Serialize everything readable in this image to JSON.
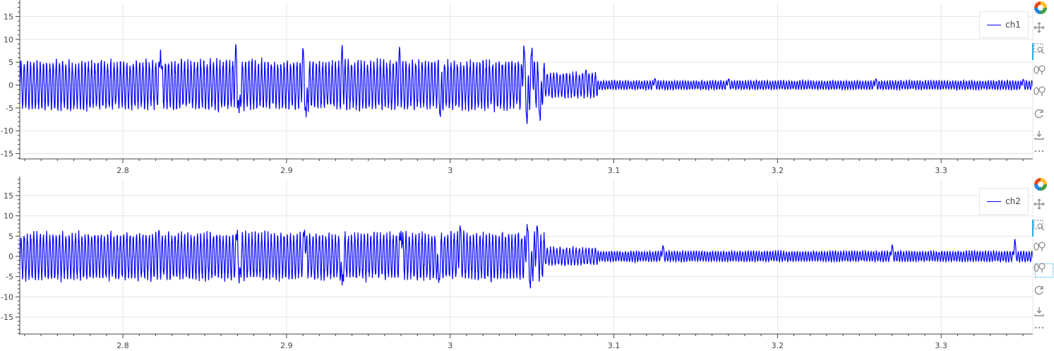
{
  "colors": {
    "line": "#0000ff",
    "grid": "#e5e5e5",
    "axis": "#444444",
    "active_tool": "#26aae1"
  },
  "toolbar": {
    "tools": [
      {
        "name": "bokeh-logo-icon",
        "active": false
      },
      {
        "name": "pan-icon",
        "active": false
      },
      {
        "name": "box-zoom-icon",
        "active": true
      },
      {
        "name": "wheel-zoom-x-icon",
        "active": false
      },
      {
        "name": "wheel-zoom-y-icon",
        "active": false
      },
      {
        "name": "reset-icon",
        "active": false
      },
      {
        "name": "save-icon",
        "active": false
      },
      {
        "name": "more-icon",
        "active": false
      }
    ]
  },
  "chart_data": [
    {
      "type": "line",
      "title": "",
      "xlabel": "",
      "ylabel": "",
      "xlim": [
        2.737,
        3.356
      ],
      "ylim": [
        -16,
        18
      ],
      "x_ticks": [
        "2.8",
        "2.9",
        "3",
        "3.1",
        "3.2",
        "3.3"
      ],
      "x_tick_values": [
        2.8,
        2.9,
        3.0,
        3.1,
        3.2,
        3.3
      ],
      "y_ticks": [
        "15",
        "10",
        "5",
        "0",
        "-5",
        "-10",
        "-15"
      ],
      "y_tick_values": [
        15,
        10,
        5,
        0,
        -5,
        -10,
        -15
      ],
      "grid": true,
      "legend_position": "top-right",
      "series": [
        {
          "name": "ch1",
          "segments": [
            {
              "x_start": 2.737,
              "x_end": 3.058,
              "freq_hz": 510,
              "amplitude": 4.8
            },
            {
              "x_start": 3.058,
              "x_end": 3.09,
              "freq_hz": 510,
              "amplitude": 2.5
            },
            {
              "x_start": 3.09,
              "x_end": 3.356,
              "freq_hz": 600,
              "amplitude": 0.9
            }
          ],
          "peaks": [
            {
              "x": 2.823,
              "y": 8.5
            },
            {
              "x": 2.869,
              "y": 9.0
            },
            {
              "x": 2.871,
              "y": -6.6
            },
            {
              "x": 2.91,
              "y": 8.3
            },
            {
              "x": 2.912,
              "y": -7.2
            },
            {
              "x": 2.934,
              "y": 8.8
            },
            {
              "x": 2.969,
              "y": 8.4
            },
            {
              "x": 2.994,
              "y": -7.0
            },
            {
              "x": 3.045,
              "y": 9.2
            },
            {
              "x": 3.047,
              "y": -8.7
            },
            {
              "x": 3.05,
              "y": 8.6
            },
            {
              "x": 3.055,
              "y": -8.3
            },
            {
              "x": 3.083,
              "y": 3.3
            },
            {
              "x": 3.125,
              "y": 1.5
            },
            {
              "x": 3.17,
              "y": 1.4
            },
            {
              "x": 3.26,
              "y": 1.4
            },
            {
              "x": 3.35,
              "y": 1.3
            }
          ]
        }
      ]
    },
    {
      "type": "line",
      "title": "",
      "xlabel": "",
      "ylabel": "",
      "xlim": [
        2.737,
        3.356
      ],
      "ylim": [
        -19,
        19
      ],
      "x_ticks": [
        "2.8",
        "2.9",
        "3",
        "3.1",
        "3.2",
        "3.3"
      ],
      "x_tick_values": [
        2.8,
        2.9,
        3.0,
        3.1,
        3.2,
        3.3
      ],
      "y_ticks": [
        "15",
        "10",
        "5",
        "0",
        "-5",
        "-10",
        "-15"
      ],
      "y_tick_values": [
        15,
        10,
        5,
        0,
        -5,
        -10,
        -15
      ],
      "grid": true,
      "legend_position": "top-right",
      "series": [
        {
          "name": "ch2",
          "segments": [
            {
              "x_start": 2.737,
              "x_end": 3.058,
              "freq_hz": 510,
              "amplitude": 5.2
            },
            {
              "x_start": 3.058,
              "x_end": 3.09,
              "freq_hz": 510,
              "amplitude": 2.0
            },
            {
              "x_start": 3.09,
              "x_end": 3.356,
              "freq_hz": 600,
              "amplitude": 1.2
            }
          ],
          "peaks": [
            {
              "x": 2.822,
              "y": 6.5
            },
            {
              "x": 2.87,
              "y": 7.0
            },
            {
              "x": 2.871,
              "y": -7.2
            },
            {
              "x": 2.911,
              "y": 7.0
            },
            {
              "x": 2.934,
              "y": -7.3
            },
            {
              "x": 2.97,
              "y": 6.8
            },
            {
              "x": 2.993,
              "y": -7.0
            },
            {
              "x": 3.006,
              "y": 7.8
            },
            {
              "x": 3.047,
              "y": 8.2
            },
            {
              "x": 3.049,
              "y": -7.9
            },
            {
              "x": 3.053,
              "y": 7.9
            },
            {
              "x": 3.13,
              "y": 2.8
            },
            {
              "x": 3.27,
              "y": 3.0
            },
            {
              "x": 3.345,
              "y": 4.5
            }
          ]
        }
      ]
    }
  ]
}
